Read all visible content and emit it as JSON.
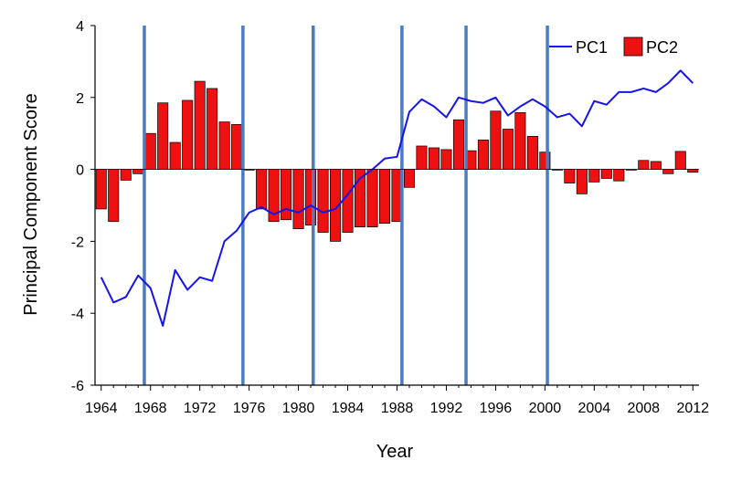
{
  "chart_data": {
    "type": "bar",
    "xlabel": "Year",
    "ylabel": "Principal Component Score",
    "ylim": [
      -6,
      4
    ],
    "xlim": [
      1963.5,
      2012.5
    ],
    "yticks": [
      -6,
      -4,
      -2,
      0,
      2,
      4
    ],
    "xticks": [
      1964,
      1968,
      1972,
      1976,
      1980,
      1984,
      1988,
      1992,
      1996,
      2000,
      2004,
      2008,
      2012
    ],
    "legend_position": "top-right",
    "vertical_lines": [
      1967.5,
      1975.5,
      1981.2,
      1988.4,
      1993.6,
      2000.2
    ],
    "colors": {
      "pc1": "#1515e8",
      "pc2": "#ee1111",
      "divider": "#4a7cc0"
    },
    "series": [
      {
        "name": "PC1",
        "type": "line",
        "x": [
          1964,
          1965,
          1966,
          1967,
          1968,
          1969,
          1970,
          1971,
          1972,
          1973,
          1974,
          1975,
          1976,
          1977,
          1978,
          1979,
          1980,
          1981,
          1982,
          1983,
          1984,
          1985,
          1986,
          1987,
          1988,
          1989,
          1990,
          1991,
          1992,
          1993,
          1994,
          1995,
          1996,
          1997,
          1998,
          1999,
          2000,
          2001,
          2002,
          2003,
          2004,
          2005,
          2006,
          2007,
          2008,
          2009,
          2010,
          2011,
          2012
        ],
        "values": [
          -3.0,
          -3.7,
          -3.55,
          -2.95,
          -3.3,
          -4.35,
          -2.8,
          -3.35,
          -3.0,
          -3.1,
          -2.0,
          -1.7,
          -1.2,
          -1.05,
          -1.25,
          -1.1,
          -1.2,
          -1.0,
          -1.2,
          -1.1,
          -0.7,
          -0.25,
          0.0,
          0.3,
          0.35,
          1.6,
          1.95,
          1.75,
          1.45,
          2.0,
          1.9,
          1.85,
          2.0,
          1.5,
          1.75,
          1.95,
          1.75,
          1.45,
          1.55,
          1.2,
          1.9,
          1.8,
          2.15,
          2.15,
          2.25,
          2.15,
          2.4,
          2.75,
          2.4
        ]
      },
      {
        "name": "PC2",
        "type": "bar",
        "x": [
          1964,
          1965,
          1966,
          1967,
          1968,
          1969,
          1970,
          1971,
          1972,
          1973,
          1974,
          1975,
          1976,
          1977,
          1978,
          1979,
          1980,
          1981,
          1982,
          1983,
          1984,
          1985,
          1986,
          1987,
          1988,
          1989,
          1990,
          1991,
          1992,
          1993,
          1994,
          1995,
          1996,
          1997,
          1998,
          1999,
          2000,
          2001,
          2002,
          2003,
          2004,
          2005,
          2006,
          2007,
          2008,
          2009,
          2010,
          2011,
          2012
        ],
        "values": [
          -1.1,
          -1.45,
          -0.3,
          -0.12,
          1.0,
          1.85,
          0.75,
          1.92,
          2.45,
          2.25,
          1.32,
          1.25,
          0.0,
          -1.1,
          -1.45,
          -1.4,
          -1.65,
          -1.55,
          -1.75,
          -2.0,
          -1.75,
          -1.6,
          -1.6,
          -1.5,
          -1.45,
          -0.5,
          0.65,
          0.6,
          0.55,
          1.38,
          0.52,
          0.82,
          1.62,
          1.12,
          1.58,
          0.92,
          0.48,
          0.0,
          -0.38,
          -0.68,
          -0.35,
          -0.25,
          -0.32,
          0.0,
          0.25,
          0.22,
          -0.12,
          0.5,
          -0.08
        ]
      }
    ]
  }
}
